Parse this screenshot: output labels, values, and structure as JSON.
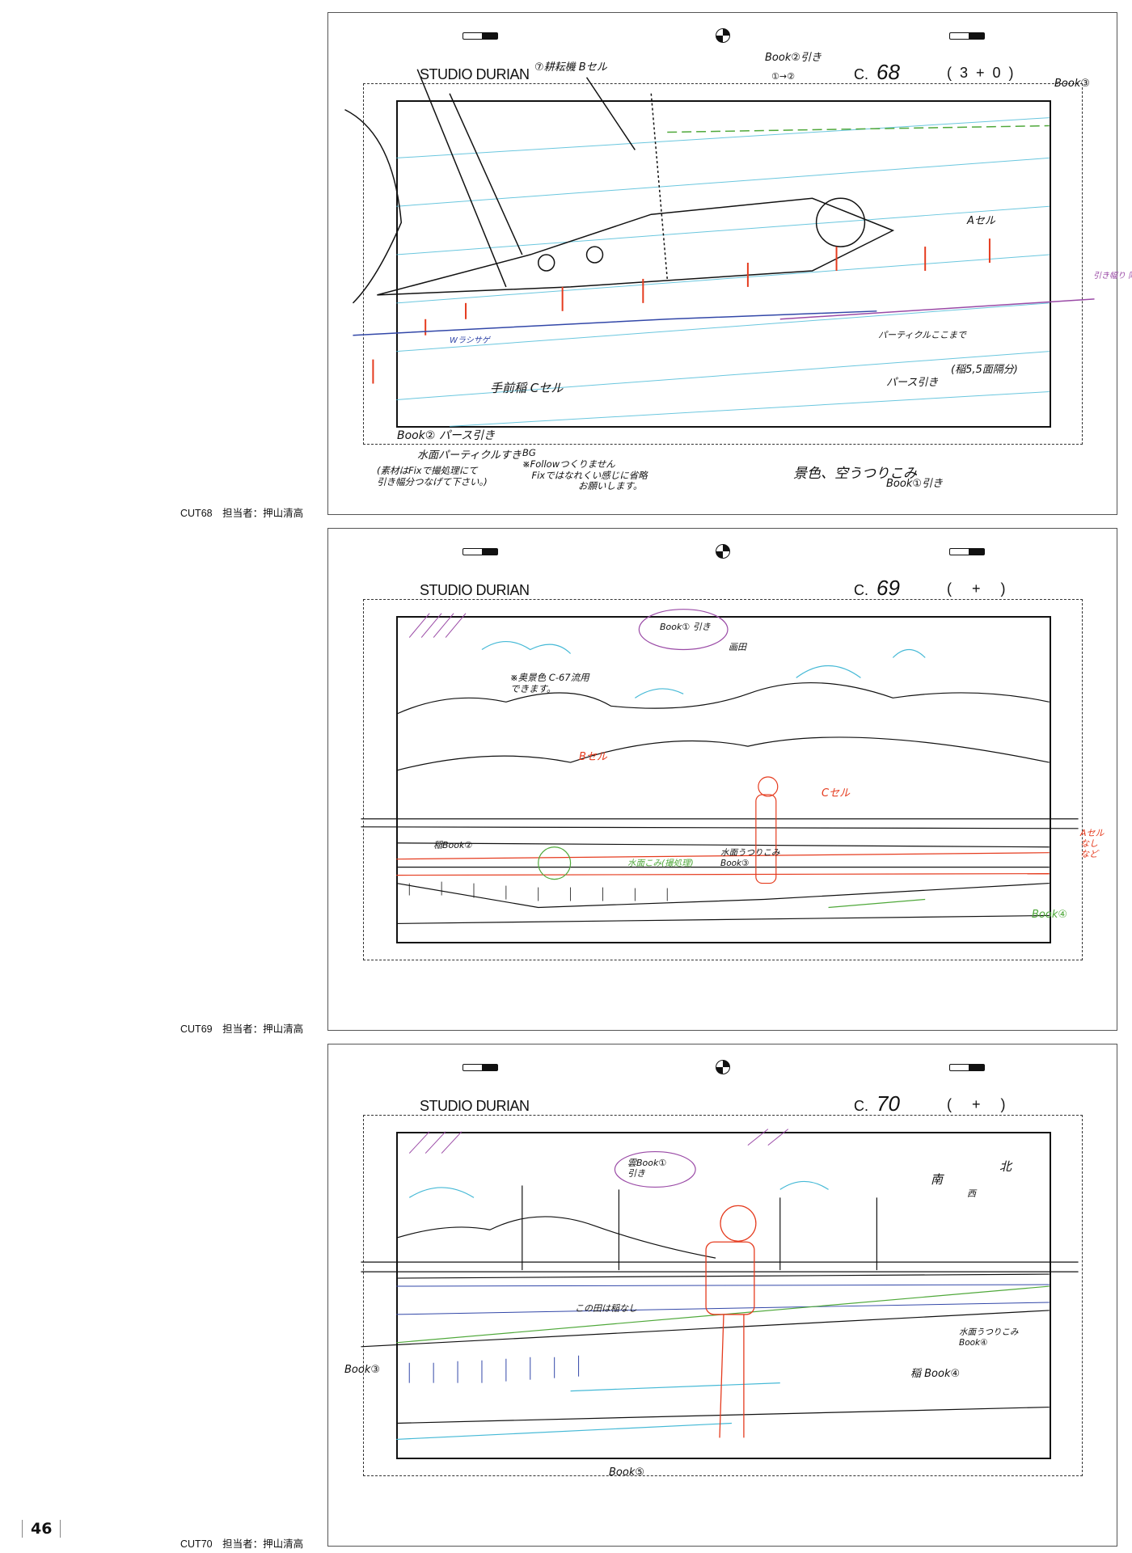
{
  "page_number": "46",
  "sheets": [
    {
      "studio": "STUDIO DURIAN",
      "cut_prefix": "C.",
      "cut_number": "68",
      "count": "(3+0)",
      "caption": "CUT68　担当者：押山清高",
      "notes": [
        "⑦耕耘機 Bセル",
        "Book②引き",
        "①→②",
        "Book③",
        "Aセル",
        "パーティクルここまで",
        "(稲5,5面隔分)",
        "パース引き",
        "Book② パース引き",
        "水面パーティクルすき",
        "(素材はFixで撮処理にて\n引き幅分つなげて下さい。)",
        "BG\n※Followつくりません\n　Fixではなれくい感じに省略\n　　　　　　お願いします。",
        "景色、空うつりこみ",
        "Book①引き",
        "手前稲 Cセル",
        "Wラシサゲ",
        "引き幅り 同一"
      ]
    },
    {
      "studio": "STUDIO DURIAN",
      "cut_prefix": "C.",
      "cut_number": "69",
      "count": "( + )",
      "caption": "CUT69　担当者：押山清高",
      "notes": [
        "Book① 引き",
        "画田",
        "※奥景色 C-67流用\nできます。",
        "Bセル",
        "Cセル",
        "稲Book②",
        "水面うつりこみ\nBook③",
        "Aセル\nなし\nなど",
        "Book④",
        "水面こみ(撮処理)"
      ]
    },
    {
      "studio": "STUDIO DURIAN",
      "cut_prefix": "C.",
      "cut_number": "70",
      "count": "( + )",
      "caption": "CUT70　担当者：押山清高",
      "notes": [
        "雲Book①\n引き",
        "南",
        "北",
        "西",
        "この田は稲なし",
        "水面うつりこみ\nBook④",
        "稲 Book④",
        "Book③",
        "Book⑤"
      ]
    }
  ],
  "colors": {
    "red": "#e53b1e",
    "green": "#4fa83a",
    "blue": "#3247a8",
    "cyan": "#45b9d6",
    "purple": "#9a4aa6"
  }
}
